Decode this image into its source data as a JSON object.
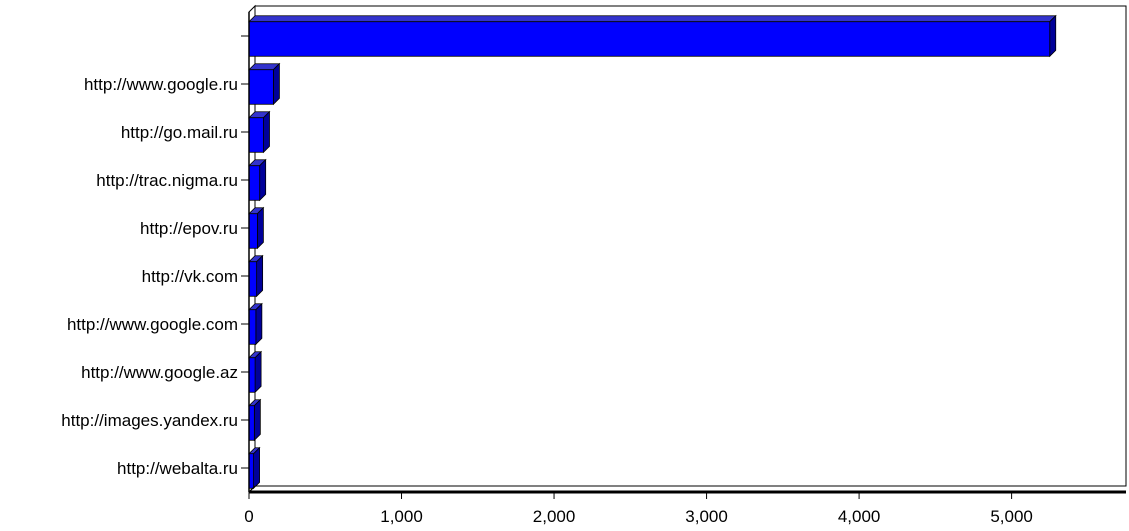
{
  "chart_data": {
    "type": "bar",
    "orientation": "horizontal",
    "style": "3d",
    "title": "",
    "xlabel": "",
    "ylabel": "",
    "categories": [
      "",
      "http://www.google.ru",
      "http://go.mail.ru",
      "http://trac.nigma.ru",
      "http://epov.ru",
      "http://vk.com",
      "http://www.google.com",
      "http://www.google.az",
      "http://images.yandex.ru",
      "http://webalta.ru"
    ],
    "values": [
      5250,
      160,
      95,
      70,
      55,
      50,
      45,
      40,
      35,
      30
    ],
    "xlim": [
      0,
      5750
    ],
    "xticks": [
      0,
      1000,
      2000,
      3000,
      4000,
      5000
    ],
    "xtick_labels": [
      "0",
      "1,000",
      "2,000",
      "3,000",
      "4,000",
      "5,000"
    ],
    "grid": true,
    "legend": "none",
    "bar_color": "#0000ff",
    "bar_side_color": "#000099",
    "bar_top_color": "#3333cc"
  }
}
